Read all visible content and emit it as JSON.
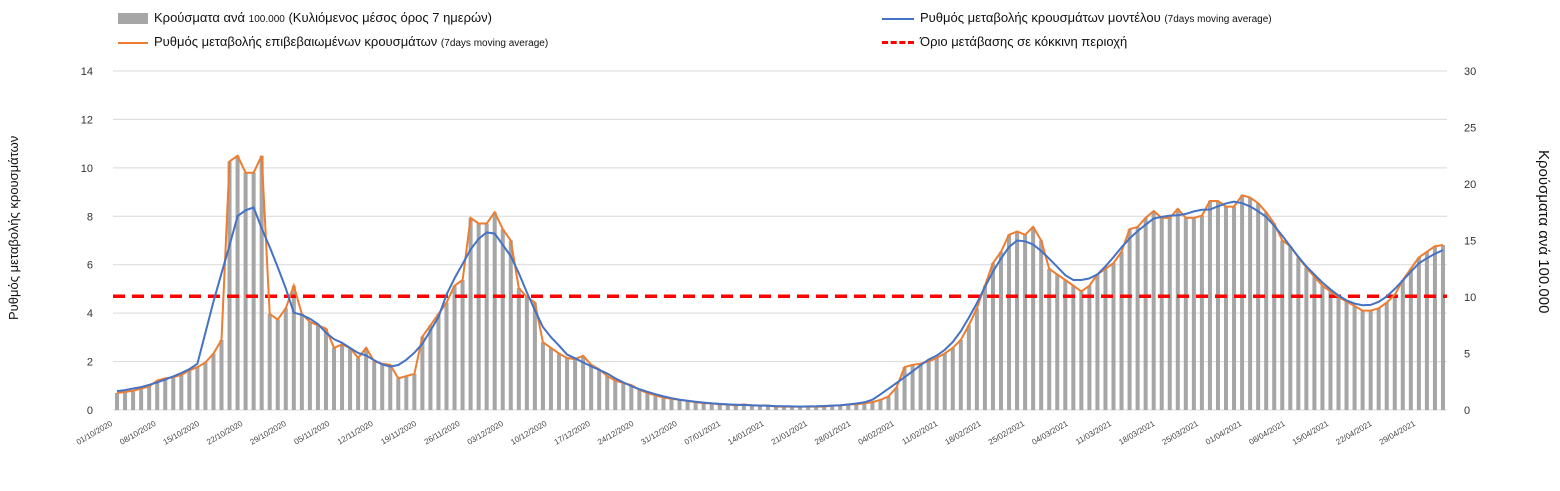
{
  "chart_data": {
    "type": "bar+line",
    "legend": [
      {
        "key": "cases",
        "label": "Κρούσματα ανά",
        "label_small": "100.000",
        "label_rest": "(Κυλιόμενος μέσος όρος 7 ημερών)",
        "color": "#a6a6a6",
        "kind": "bar"
      },
      {
        "key": "model",
        "label": "Ρυθμός μεταβολής κρουσμάτων μοντέλου",
        "label_small": "(7days moving average)",
        "color": "#4472c4",
        "kind": "line"
      },
      {
        "key": "confirmed",
        "label": "Ρυθμός μεταβολής επιβεβαιωμένων κρουσμάτων",
        "label_small": "(7days moving average)",
        "color": "#ed7d31",
        "kind": "line"
      },
      {
        "key": "threshold",
        "label": "Όριο μετάβασης σε κόκκινη περιοχή",
        "color": "#ff0000",
        "kind": "dashed"
      }
    ],
    "ylabel_left": "Ρυθμός μεταβολής κρουσμάτων",
    "ylabel_right": "Κρούσματα ανά 100.000",
    "ylim_left": [
      0,
      14
    ],
    "yticks_left": [
      0,
      2,
      4,
      6,
      8,
      10,
      12,
      14
    ],
    "ylim_right": [
      0,
      30
    ],
    "yticks_right": [
      0,
      5,
      10,
      15,
      20,
      25,
      30
    ],
    "threshold_left": 4.7,
    "x_start": "2020-10-01",
    "x_end": "2021-05-04",
    "x_tick_labels": [
      "01/10/2020",
      "08/10/2020",
      "15/10/2020",
      "22/10/2020",
      "29/10/2020",
      "05/11/2020",
      "12/11/2020",
      "19/11/2020",
      "26/11/2020",
      "03/12/2020",
      "10/12/2020",
      "17/12/2020",
      "24/12/2020",
      "31/12/2020",
      "07/01/2021",
      "14/01/2021",
      "21/01/2021",
      "28/01/2021",
      "04/02/2021",
      "11/02/2021",
      "18/02/2021",
      "25/02/2021",
      "04/03/2021",
      "11/03/2021",
      "18/03/2021",
      "25/03/2021",
      "01/04/2021",
      "08/04/2021",
      "15/04/2021",
      "22/04/2021",
      "29/04/2021"
    ],
    "cases_per_100k": [
      1.5,
      1.6,
      1.7,
      1.9,
      2.1,
      2.6,
      2.8,
      2.9,
      3.1,
      3.5,
      3.8,
      4.2,
      5.0,
      6.2,
      22.0,
      22.5,
      21.0,
      21.0,
      22.5,
      8.5,
      8.0,
      9.0,
      11.0,
      8.5,
      7.8,
      7.5,
      7.2,
      5.5,
      5.8,
      5.5,
      4.6,
      5.5,
      4.3,
      4.1,
      4.0,
      2.8,
      3.0,
      3.2,
      6.5,
      7.5,
      8.5,
      9.5,
      11.0,
      11.5,
      17.0,
      16.5,
      16.5,
      17.5,
      16.0,
      15.0,
      10.8,
      10.0,
      9.5,
      6.0,
      5.5,
      5.0,
      4.6,
      4.5,
      4.8,
      4.0,
      3.6,
      3.0,
      2.6,
      2.4,
      2.2,
      1.8,
      1.5,
      1.3,
      1.1,
      1.0,
      0.9,
      0.8,
      0.7,
      0.6,
      0.6,
      0.5,
      0.5,
      0.4,
      0.5,
      0.4,
      0.4,
      0.4,
      0.3,
      0.3,
      0.3,
      0.3,
      0.3,
      0.3,
      0.3,
      0.4,
      0.4,
      0.5,
      0.5,
      0.6,
      0.7,
      0.9,
      1.2,
      2.0,
      3.8,
      4.0,
      4.1,
      4.3,
      4.6,
      5.0,
      5.5,
      6.2,
      7.5,
      9.0,
      11.0,
      13.0,
      14.0,
      15.5,
      15.8,
      15.5,
      16.2,
      15.0,
      12.5,
      12.0,
      11.5,
      11.0,
      10.5,
      11.0,
      12.0,
      12.5,
      13.0,
      14.0,
      16.0,
      16.2,
      17.0,
      17.6,
      17.0,
      17.0,
      17.8,
      17.0,
      17.0,
      17.2,
      18.5,
      18.5,
      18.0,
      18.0,
      19.0,
      18.8,
      18.3,
      17.5,
      16.5,
      15.0,
      14.5,
      13.5,
      12.6,
      11.8,
      11.0,
      10.5,
      10.0,
      9.6,
      9.2,
      8.8,
      8.8,
      9.0,
      9.5,
      10.2,
      11.5,
      12.5,
      13.5,
      14.0,
      14.5,
      14.6
    ]
  }
}
